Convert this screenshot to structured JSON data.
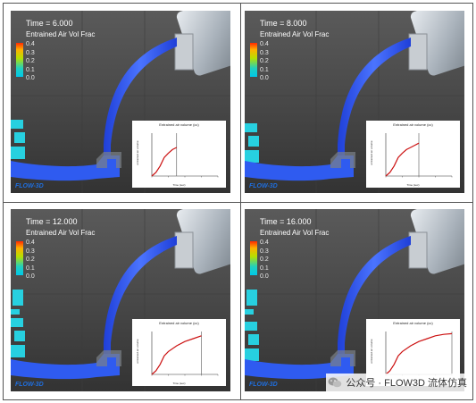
{
  "legend": {
    "label": "Entrained Air Vol Frac",
    "ticks": [
      "0.4",
      "0.3",
      "0.2",
      "0.1",
      "0.0"
    ]
  },
  "logo": "FLOW-3D",
  "chart": {
    "title": "Entrained air volume (cc)",
    "ylabel": "entrained air volume",
    "xlabel": "Time (sec)"
  },
  "panels": [
    {
      "time": "Time = 6.000"
    },
    {
      "time": "Time = 8.000"
    },
    {
      "time": "Time = 12.000"
    },
    {
      "time": "Time = 16.000"
    }
  ],
  "watermark": {
    "text": "公众号 · FLOW3D 流体仿真",
    "icon": "wechat-icon"
  },
  "colors": {
    "fluid": "#2f5bf0",
    "curve": "#cc1111",
    "background": "#4a4a4a"
  },
  "chart_data": [
    {
      "type": "line",
      "title": "Entrained air volume (cc)",
      "xlabel": "Time (sec)",
      "ylabel": "entrained air volume",
      "series": [
        {
          "x": [
            0,
            1,
            2,
            3,
            4,
            5,
            6
          ],
          "y": [
            0,
            0.5,
            1.4,
            2.6,
            3.2,
            3.7,
            4.0
          ]
        }
      ],
      "xlim": [
        0,
        16
      ],
      "ylim": [
        0,
        6
      ],
      "marker_x": 6
    },
    {
      "type": "line",
      "title": "Entrained air volume (cc)",
      "xlabel": "Time (sec)",
      "ylabel": "entrained air volume",
      "series": [
        {
          "x": [
            0,
            1,
            2,
            3,
            4,
            5,
            6,
            7,
            8
          ],
          "y": [
            0,
            0.5,
            1.4,
            2.6,
            3.2,
            3.7,
            4.0,
            4.3,
            4.6
          ]
        }
      ],
      "xlim": [
        0,
        16
      ],
      "ylim": [
        0,
        6
      ],
      "marker_x": 8
    },
    {
      "type": "line",
      "title": "Entrained air volume (cc)",
      "xlabel": "Time (sec)",
      "ylabel": "entrained air volume",
      "series": [
        {
          "x": [
            0,
            1,
            2,
            3,
            4,
            6,
            8,
            10,
            12
          ],
          "y": [
            0,
            0.5,
            1.4,
            2.6,
            3.2,
            4.0,
            4.6,
            5.0,
            5.4
          ]
        }
      ],
      "xlim": [
        0,
        16
      ],
      "ylim": [
        0,
        6
      ],
      "marker_x": 12
    },
    {
      "type": "line",
      "title": "Entrained air volume (cc)",
      "xlabel": "Time (sec)",
      "ylabel": "entrained air volume",
      "series": [
        {
          "x": [
            0,
            1,
            2,
            3,
            4,
            6,
            8,
            10,
            12,
            14,
            16
          ],
          "y": [
            0,
            0.5,
            1.4,
            2.6,
            3.2,
            4.0,
            4.6,
            5.0,
            5.4,
            5.6,
            5.7
          ]
        }
      ],
      "xlim": [
        0,
        16
      ],
      "ylim": [
        0,
        6
      ],
      "marker_x": 16
    }
  ]
}
